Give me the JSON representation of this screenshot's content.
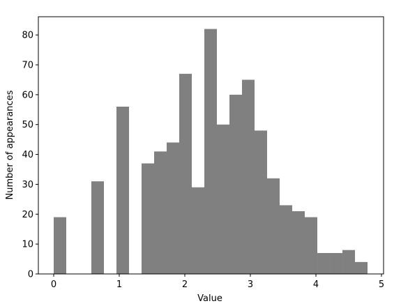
{
  "chart_data": {
    "type": "histogram",
    "xlabel": "Value",
    "ylabel": "Number of appearances",
    "bins": [
      0,
      0.1915,
      0.383,
      0.5745,
      0.766,
      0.9575,
      1.149,
      1.3405,
      1.532,
      1.7235,
      1.915,
      2.1065,
      2.298,
      2.4895,
      2.681,
      2.8725,
      3.064,
      3.2555,
      3.447,
      3.6385,
      3.83,
      4.0215,
      4.213,
      4.4045,
      4.596,
      4.7875
    ],
    "counts": [
      19,
      0,
      0,
      31,
      0,
      56,
      0,
      37,
      41,
      44,
      67,
      29,
      82,
      50,
      60,
      65,
      48,
      32,
      23,
      21,
      19,
      7,
      7,
      8,
      4
    ],
    "color": "#808080",
    "xlim": [
      -0.234,
      5.032
    ],
    "xticks": [
      0,
      1,
      2,
      3,
      4,
      5
    ],
    "ylim": [
      0,
      86.1
    ],
    "yticks": [
      0,
      10,
      20,
      30,
      40,
      50,
      60,
      70,
      80
    ]
  }
}
